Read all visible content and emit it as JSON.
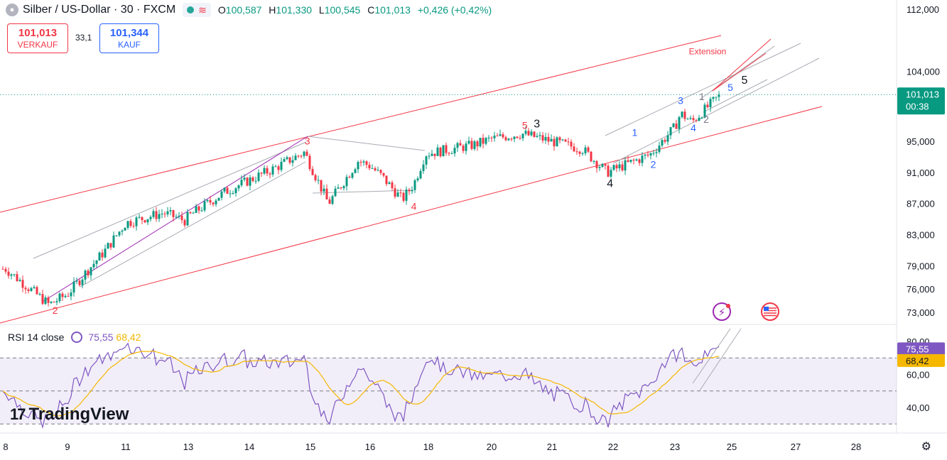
{
  "header": {
    "symbol": "Silber / US-Dollar · 30 · FXCM",
    "open_label": "O",
    "open": "100,587",
    "high_label": "H",
    "high": "101,330",
    "low_label": "L",
    "low": "100,545",
    "close_label": "C",
    "close": "101,013",
    "change": "+0,426 (+0,42%)"
  },
  "trade": {
    "sell_price": "101,013",
    "sell_label": "VERKAUF",
    "spread": "33,1",
    "buy_price": "101,344",
    "buy_label": "KAUF"
  },
  "rsi": {
    "label": "RSI 14 close",
    "value": "75,55",
    "ma": "68,42"
  },
  "brand": "TradingView",
  "colors": {
    "up": "#089981",
    "down": "#f23645",
    "rsi": "#7e57c2",
    "rsi_ma": "#f5b700",
    "channel": "#f23645",
    "wave_blue": "#2962ff"
  },
  "chart_data": {
    "type": "candlestick",
    "price_axis_ticks": [
      "112,000",
      "104,000",
      "101,013",
      "95,000",
      "91,000",
      "87,000",
      "83,000",
      "79,000",
      "76,000",
      "73,000"
    ],
    "last_price": "101,013",
    "countdown": "00:38",
    "rsi_axis_ticks": [
      "80,00",
      "75,55",
      "68,42",
      "60,00",
      "40,00"
    ],
    "rsi_levels": [
      70,
      50,
      30
    ],
    "x_tick_labels": [
      "8",
      "9",
      "11",
      "13",
      "14",
      "15",
      "16",
      "18",
      "20",
      "21",
      "22",
      "23",
      "25",
      "27",
      "28"
    ],
    "price_anchors": [
      {
        "day": 8.0,
        "price": 78.6
      },
      {
        "day": 8.7,
        "price": 74.0
      },
      {
        "day": 9.6,
        "price": 78.0
      },
      {
        "day": 10.3,
        "price": 81.0
      },
      {
        "day": 11.0,
        "price": 84.5
      },
      {
        "day": 12.2,
        "price": 85.8
      },
      {
        "day": 12.9,
        "price": 84.8
      },
      {
        "day": 13.6,
        "price": 88.5
      },
      {
        "day": 14.4,
        "price": 91.5
      },
      {
        "day": 14.9,
        "price": 93.6
      },
      {
        "day": 15.3,
        "price": 87.0
      },
      {
        "day": 15.8,
        "price": 92.5
      },
      {
        "day": 16.4,
        "price": 90.5
      },
      {
        "day": 17.1,
        "price": 87.5
      },
      {
        "day": 17.5,
        "price": 89.5
      },
      {
        "day": 17.9,
        "price": 93.4
      },
      {
        "day": 19.4,
        "price": 94.5
      },
      {
        "day": 20.5,
        "price": 96.0
      },
      {
        "day": 21.5,
        "price": 94.0
      },
      {
        "day": 21.9,
        "price": 91.0
      },
      {
        "day": 22.6,
        "price": 93.3
      },
      {
        "day": 23.2,
        "price": 98.6
      },
      {
        "day": 23.6,
        "price": 97.5
      },
      {
        "day": 24.6,
        "price": 101.0
      }
    ],
    "annotations": [
      {
        "text": "2",
        "day": 8.8,
        "price": 72.8,
        "color": "#f23645"
      },
      {
        "text": "3",
        "day": 14.95,
        "price": 94.6,
        "color": "#f23645"
      },
      {
        "text": "4",
        "day": 17.5,
        "price": 86.2,
        "color": "#f23645"
      },
      {
        "text": "5",
        "day": 20.55,
        "price": 96.6,
        "color": "#f23645"
      },
      {
        "text": "3",
        "day": 20.75,
        "price": 96.8,
        "color": "#131722"
      },
      {
        "text": "4",
        "day": 21.95,
        "price": 89.1,
        "color": "#131722"
      },
      {
        "text": "1",
        "day": 22.35,
        "price": 95.7,
        "color": "#2962ff"
      },
      {
        "text": "2",
        "day": 22.65,
        "price": 91.6,
        "color": "#2962ff"
      },
      {
        "text": "3",
        "day": 23.2,
        "price": 99.8,
        "color": "#2962ff"
      },
      {
        "text": "4",
        "day": 23.65,
        "price": 96.3,
        "color": "#2962ff"
      },
      {
        "text": "1",
        "day": 23.95,
        "price": 100.3,
        "color": "#787b86"
      },
      {
        "text": "2",
        "day": 24.1,
        "price": 97.4,
        "color": "#787b86"
      },
      {
        "text": "5",
        "day": 24.95,
        "price": 101.5,
        "color": "#2962ff"
      },
      {
        "text": "5",
        "day": 25.4,
        "price": 102.4,
        "color": "#131722"
      },
      {
        "text": "Extension",
        "day": 24.15,
        "price": 106.2,
        "color": "#f23645"
      }
    ]
  }
}
